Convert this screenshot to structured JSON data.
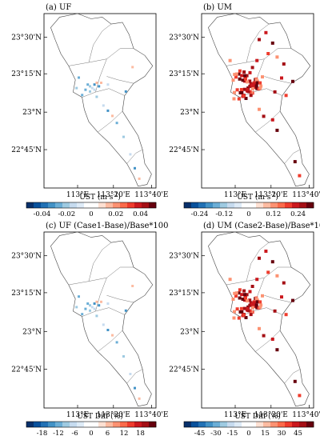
{
  "panels": [
    {
      "id": "a",
      "title": "(a) UF",
      "lat_labels": [
        "23°30'N",
        "23°15'N",
        "23°N",
        "22°45'N"
      ],
      "lon_labels": [
        "113°E",
        "113°20'E",
        "113°40'E"
      ],
      "colorbar_label": "UST (m s",
      "colorbar_sup": "-1",
      "colorbar_suffix": ")",
      "ticks": [
        "-0.04",
        "-0.02",
        "0",
        "0.02",
        "0.04"
      ],
      "scheme": "small"
    },
    {
      "id": "b",
      "title": "(b) UM",
      "lat_labels": [
        "23°30'N",
        "23°15'N",
        "23°N",
        "22°45'N"
      ],
      "lon_labels": [
        "113°E",
        "113°20'E",
        "113°40'E"
      ],
      "colorbar_label": "UST (m s",
      "colorbar_sup": "-1",
      "colorbar_suffix": ")",
      "ticks": [
        "-0.24",
        "-0.12",
        "0",
        "0.12",
        "0.24"
      ],
      "scheme": "large"
    },
    {
      "id": "c",
      "title": "(c) UF (Case1-Base)/Base*100",
      "lat_labels": [
        "23°30'N",
        "23°15'N",
        "23°N",
        "22°45'N"
      ],
      "lon_labels": [
        "113°E",
        "113°20'E",
        "113°40'E"
      ],
      "colorbar_label": "UST Diff (%)",
      "colorbar_sup": "",
      "colorbar_suffix": "",
      "ticks": [
        "-18",
        "-12",
        "-6",
        "0",
        "6",
        "12",
        "18"
      ],
      "scheme": "small"
    },
    {
      "id": "d",
      "title": "(d) UM (Case2-Base)/Base*100",
      "lat_labels": [
        "23°30'N",
        "23°15'N",
        "23°N",
        "22°45'N"
      ],
      "lon_labels": [
        "113°E",
        "113°20'E",
        "113°40'E"
      ],
      "colorbar_label": "UST Diff (%)",
      "colorbar_sup": "",
      "colorbar_suffix": "",
      "ticks": [
        "-45",
        "-30",
        "-15",
        "0",
        "15",
        "30",
        "45"
      ],
      "scheme": "large"
    }
  ],
  "colorbar_colors": [
    "#08306b",
    "#08519c",
    "#2171b5",
    "#4292c6",
    "#6baed6",
    "#9ecae1",
    "#c6dbef",
    "#deebf7",
    "#ffffff",
    "#ffffff",
    "#fee0d2",
    "#fcbba1",
    "#fc9272",
    "#fb6a4a",
    "#ef3b2c",
    "#cb181d",
    "#a50f15",
    "#67000d"
  ],
  "patch_colors": {
    "small": [
      "#6baed6",
      "#9ecae1",
      "#c6dbef",
      "#4292c6",
      "#fcbba1"
    ],
    "large": [
      "#a50f15",
      "#cb181d",
      "#67000d",
      "#ef3b2c",
      "#fc9272"
    ]
  }
}
